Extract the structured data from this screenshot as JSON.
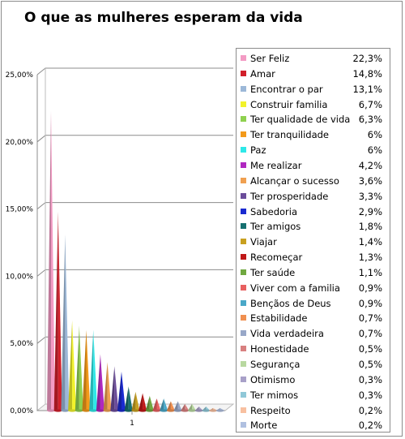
{
  "chart_data": {
    "type": "bar",
    "title": "O que as mulheres esperam da vida",
    "xlabel": "",
    "ylabel": "",
    "categories": [
      "1"
    ],
    "ylim": [
      0,
      25
    ],
    "yticks": [
      "0,00%",
      "5,00%",
      "10,00%",
      "15,00%",
      "20,00%",
      "25,00%"
    ],
    "grid": "horizontal",
    "legend_position": "right",
    "series": [
      {
        "name": "Ser Feliz",
        "value": 22.3,
        "label": "22,3%",
        "color": "#f39bc4"
      },
      {
        "name": "Amar",
        "value": 14.8,
        "label": "14,8%",
        "color": "#d11f2a"
      },
      {
        "name": "Encontrar o par",
        "value": 13.1,
        "label": "13,1%",
        "color": "#9cb8d8"
      },
      {
        "name": "Construir familia",
        "value": 6.7,
        "label": "6,7%",
        "color": "#f2f22a"
      },
      {
        "name": "Ter qualidade de vida",
        "value": 6.3,
        "label": "6,3%",
        "color": "#8fd14f"
      },
      {
        "name": "Ter tranquilidade",
        "value": 6,
        "label": "6%",
        "color": "#f39a1a"
      },
      {
        "name": "Paz",
        "value": 6,
        "label": "6%",
        "color": "#2ee8e8"
      },
      {
        "name": "Me realizar",
        "value": 4.2,
        "label": "4,2%",
        "color": "#b028c0"
      },
      {
        "name": "Alcançar o sucesso",
        "value": 3.6,
        "label": "3,6%",
        "color": "#f0a050"
      },
      {
        "name": "Ter prosperidade",
        "value": 3.3,
        "label": "3,3%",
        "color": "#6b4c9a"
      },
      {
        "name": "Sabedoria",
        "value": 2.9,
        "label": "2,9%",
        "color": "#1a2ad0"
      },
      {
        "name": "Ter amigos",
        "value": 1.8,
        "label": "1,8%",
        "color": "#167070"
      },
      {
        "name": "Viajar",
        "value": 1.4,
        "label": "1,4%",
        "color": "#c8a020"
      },
      {
        "name": "Recomeçar",
        "value": 1.3,
        "label": "1,3%",
        "color": "#c01818"
      },
      {
        "name": "Ter saúde",
        "value": 1.1,
        "label": "1,1%",
        "color": "#70a840"
      },
      {
        "name": "Viver com a familia",
        "value": 0.9,
        "label": "0,9%",
        "color": "#e86060"
      },
      {
        "name": "Bençãos de Deus",
        "value": 0.9,
        "label": "0,9%",
        "color": "#4aa8c8"
      },
      {
        "name": "Estabilidade",
        "value": 0.7,
        "label": "0,7%",
        "color": "#f09050"
      },
      {
        "name": "Vida verdadeira",
        "value": 0.7,
        "label": "0,7%",
        "color": "#98a8c8"
      },
      {
        "name": "Honestidade",
        "value": 0.5,
        "label": "0,5%",
        "color": "#d88080"
      },
      {
        "name": "Segurança",
        "value": 0.5,
        "label": "0,5%",
        "color": "#b8d8a0"
      },
      {
        "name": "Otimismo",
        "value": 0.3,
        "label": "0,3%",
        "color": "#a8a0c8"
      },
      {
        "name": "Ter mimos",
        "value": 0.3,
        "label": "0,3%",
        "color": "#90c8d8"
      },
      {
        "name": "Respeito",
        "value": 0.2,
        "label": "0,2%",
        "color": "#f8c0a0"
      },
      {
        "name": "Morte",
        "value": 0.2,
        "label": "0,2%",
        "color": "#b0c0e0"
      }
    ]
  }
}
